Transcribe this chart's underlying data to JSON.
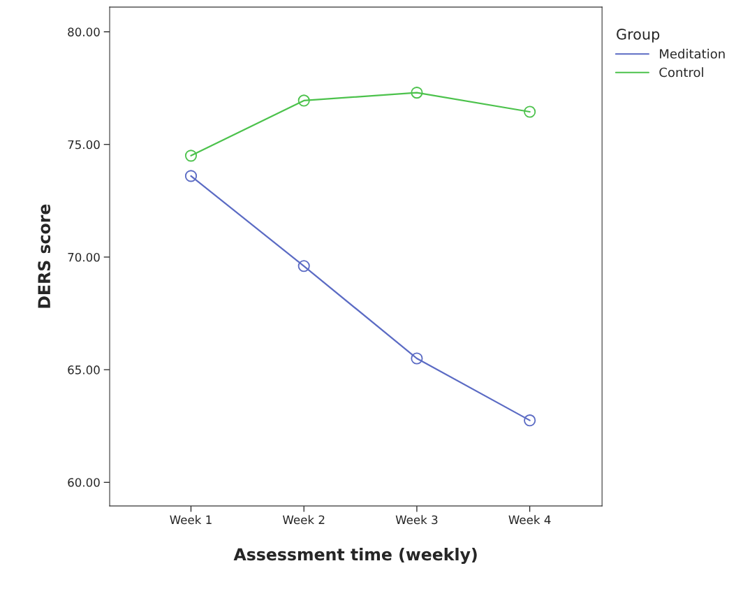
{
  "chart_data": {
    "type": "line",
    "xlabel": "Assessment time (weekly)",
    "ylabel": "DERS score",
    "legend_title": "Group",
    "categories": [
      "Week 1",
      "Week 2",
      "Week 3",
      "Week 4"
    ],
    "series": [
      {
        "name": "Meditation",
        "color": "#5b6bc4",
        "values": [
          73.6,
          69.6,
          65.5,
          62.75
        ]
      },
      {
        "name": "Control",
        "color": "#4cc24c",
        "values": [
          74.5,
          76.95,
          77.3,
          76.45
        ]
      }
    ],
    "ylim": [
      58.95,
      81.1
    ],
    "yticks": [
      {
        "value": 60,
        "label": "60.00"
      },
      {
        "value": 65,
        "label": "65.00"
      },
      {
        "value": 70,
        "label": "70.00"
      },
      {
        "value": 75,
        "label": "75.00"
      },
      {
        "value": 80,
        "label": "80.00"
      }
    ],
    "marker": "circle",
    "line_style": "solid",
    "grid": false,
    "legend": "top right"
  }
}
